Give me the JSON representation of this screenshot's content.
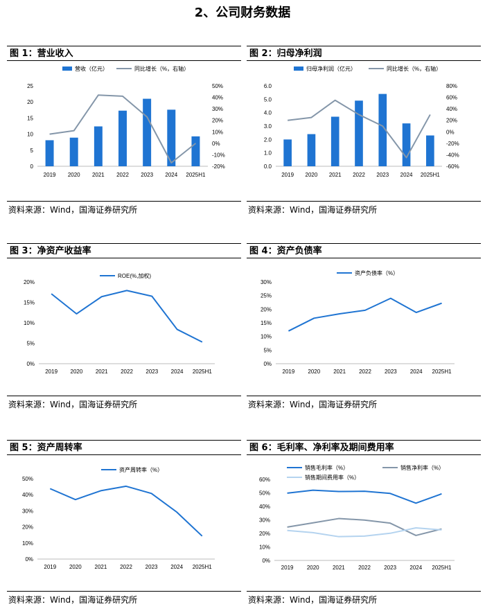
{
  "section_title": "2、公司财务数据",
  "source_text": "资料来源：Wind，国海证券研究所",
  "colors": {
    "blue": "#1F74D2",
    "gray": "#8496A9",
    "light": "#B4D3EF"
  },
  "chart_data": [
    {
      "id": "fig1",
      "title": "图 1：营业收入",
      "type": "bar+line",
      "categories": [
        "2019",
        "2020",
        "2021",
        "2022",
        "2023",
        "2024",
        "2025H1"
      ],
      "series": [
        {
          "name": "营收（亿元）",
          "type": "bar",
          "axis": "left",
          "values": [
            8.1,
            8.9,
            12.4,
            17.3,
            21.0,
            17.6,
            9.3
          ]
        },
        {
          "name": "同比增长（%，右轴）",
          "type": "line",
          "axis": "right",
          "values": [
            8,
            11,
            42,
            41,
            23,
            -17,
            0
          ]
        }
      ],
      "y_left": {
        "min": 0,
        "max": 25,
        "ticks": [
          "0",
          "5",
          "10",
          "15",
          "20",
          "25"
        ]
      },
      "y_right": {
        "min": -20,
        "max": 50,
        "ticks": [
          "-20%",
          "-10%",
          "0%",
          "10%",
          "20%",
          "30%",
          "40%",
          "50%"
        ]
      }
    },
    {
      "id": "fig2",
      "title": "图 2：归母净利润",
      "type": "bar+line",
      "categories": [
        "2019",
        "2020",
        "2021",
        "2022",
        "2023",
        "2024",
        "2025H1"
      ],
      "series": [
        {
          "name": "归母净利润（亿元）",
          "type": "bar",
          "axis": "left",
          "values": [
            2.0,
            2.4,
            3.7,
            4.9,
            5.4,
            3.2,
            2.3
          ]
        },
        {
          "name": "同比增长（%，右轴）",
          "type": "line",
          "axis": "right",
          "values": [
            20,
            25,
            55,
            30,
            10,
            -45,
            30
          ]
        }
      ],
      "y_left": {
        "min": 0,
        "max": 6,
        "ticks": [
          "0.0",
          "1.0",
          "2.0",
          "3.0",
          "4.0",
          "5.0",
          "6.0"
        ]
      },
      "y_right": {
        "min": -60,
        "max": 80,
        "ticks": [
          "-60%",
          "-40%",
          "-20%",
          "0%",
          "20%",
          "40%",
          "60%",
          "80%"
        ]
      }
    },
    {
      "id": "fig3",
      "title": "图 3：净资产收益率",
      "type": "line",
      "categories": [
        "2019",
        "2020",
        "2021",
        "2022",
        "2023",
        "2024",
        "2025H1"
      ],
      "series": [
        {
          "name": "ROE(%,加权)",
          "color": "blue",
          "values": [
            17.1,
            12.2,
            16.4,
            17.9,
            16.5,
            8.4,
            5.3
          ]
        }
      ],
      "y_left": {
        "min": 0,
        "max": 20,
        "ticks": [
          "0%",
          "5%",
          "10%",
          "15%",
          "20%"
        ]
      }
    },
    {
      "id": "fig4",
      "title": "图 4：资产负债率",
      "type": "line",
      "categories": [
        "2019",
        "2020",
        "2021",
        "2022",
        "2023",
        "2024",
        "2025H1"
      ],
      "series": [
        {
          "name": "资产负债率（%）",
          "color": "blue",
          "values": [
            12.0,
            16.7,
            18.3,
            19.6,
            24.0,
            18.8,
            22.2
          ]
        }
      ],
      "y_left": {
        "min": 0,
        "max": 30,
        "ticks": [
          "0%",
          "5%",
          "10%",
          "15%",
          "20%",
          "25%",
          "30%"
        ]
      }
    },
    {
      "id": "fig5",
      "title": "图 5：资产周转率",
      "type": "line",
      "categories": [
        "2019",
        "2020",
        "2021",
        "2022",
        "2023",
        "2024",
        "2025H1"
      ],
      "series": [
        {
          "name": "资产周转率（%）",
          "color": "blue",
          "values": [
            43.8,
            37.0,
            42.5,
            45.3,
            40.8,
            29.2,
            14.3
          ]
        }
      ],
      "y_left": {
        "min": 0,
        "max": 50,
        "ticks": [
          "0%",
          "10%",
          "20%",
          "30%",
          "40%",
          "50%"
        ]
      }
    },
    {
      "id": "fig6",
      "title": "图 6：毛利率、净利率及期间费用率",
      "type": "line",
      "categories": [
        "2019",
        "2020",
        "2021",
        "2022",
        "2023",
        "2024",
        "2025H1"
      ],
      "series": [
        {
          "name": "销售毛利率（%）",
          "color": "blue",
          "values": [
            49.8,
            52.0,
            51.0,
            51.2,
            49.6,
            42.4,
            49.3
          ]
        },
        {
          "name": "销售净利率（%）",
          "color": "gray",
          "values": [
            24.7,
            27.8,
            31.0,
            29.9,
            27.6,
            18.5,
            23.3
          ]
        },
        {
          "name": "销售期间费用率（%）",
          "color": "light",
          "values": [
            22.2,
            20.6,
            17.6,
            18.0,
            20.1,
            24.1,
            22.6
          ]
        }
      ],
      "y_left": {
        "min": 0,
        "max": 60,
        "ticks": [
          "0%",
          "10%",
          "20%",
          "30%",
          "40%",
          "50%",
          "60%"
        ]
      }
    }
  ]
}
